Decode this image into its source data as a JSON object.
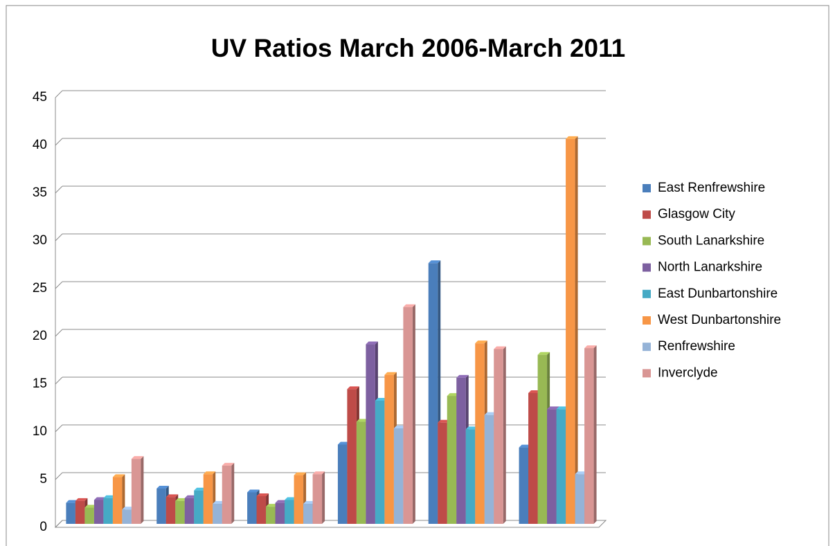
{
  "chart_data": {
    "type": "bar",
    "title": "UV Ratios March 2006-March 2011",
    "categories": [
      null,
      null,
      null,
      null,
      null,
      null
    ],
    "series": [
      {
        "name": "East Renfrewshire",
        "color": "#4a7ebb",
        "values": [
          2.2,
          3.7,
          3.3,
          8.3,
          27.3,
          8.0
        ]
      },
      {
        "name": "Glasgow City",
        "color": "#be4b48",
        "values": [
          2.4,
          2.8,
          2.9,
          14.1,
          10.6,
          13.7
        ]
      },
      {
        "name": "South Lanarkshire",
        "color": "#98b954",
        "values": [
          1.7,
          2.4,
          1.8,
          10.7,
          13.4,
          17.7
        ]
      },
      {
        "name": "North Lanarkshire",
        "color": "#7d60a0",
        "values": [
          2.5,
          2.7,
          2.2,
          18.8,
          15.3,
          12.0
        ]
      },
      {
        "name": "East Dunbartonshire",
        "color": "#46aac5",
        "values": [
          2.7,
          3.5,
          2.5,
          12.9,
          9.9,
          12.0
        ]
      },
      {
        "name": "West Dunbartonshire",
        "color": "#f79646",
        "values": [
          4.9,
          5.2,
          5.1,
          15.6,
          18.9,
          40.3
        ]
      },
      {
        "name": "Renfrewshire",
        "color": "#95b3d7",
        "values": [
          1.5,
          2.1,
          2.1,
          10.0,
          11.4,
          5.2
        ]
      },
      {
        "name": "Inverclyde",
        "color": "#d99694",
        "values": [
          6.8,
          6.1,
          5.2,
          22.7,
          18.3,
          18.4
        ]
      }
    ],
    "ylim": [
      0,
      45
    ],
    "yticks": [
      0,
      5,
      10,
      15,
      20,
      25,
      30,
      35,
      40,
      45
    ],
    "grid": true,
    "legend": "right"
  }
}
